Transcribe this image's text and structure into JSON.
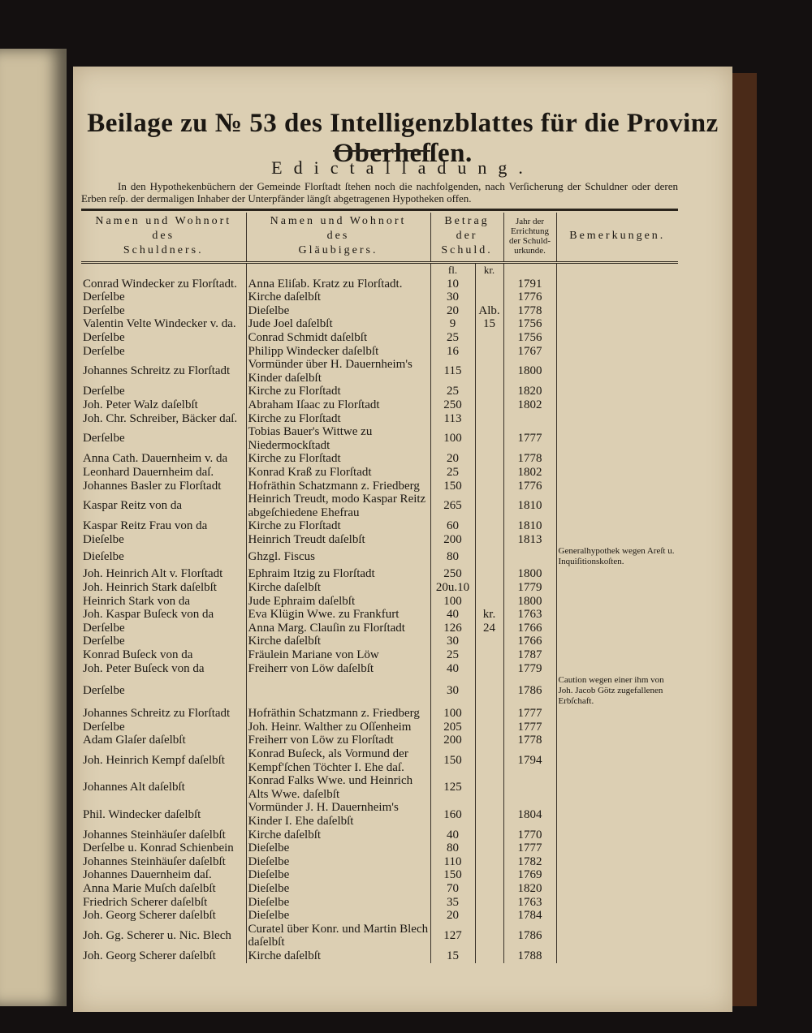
{
  "header": {
    "title": "Beilage zu № 53 des Intelligenzblattes für die Provinz Oberheſſen.",
    "subtitle": "Edictalladung.",
    "intro": "In den Hypothekenbüchern der Gemeinde Florſtadt ſtehen noch die nachfolgenden, nach Verſicherung der Schuldner oder deren Erben reſp. der dermaligen Inhaber der Unterpfänder längſt abgetragenen Hypotheken offen."
  },
  "table": {
    "columns": [
      [
        "Namen und Wohnort",
        "des",
        "Schuldners."
      ],
      [
        "Namen und Wohnort",
        "des",
        "Gläubigers."
      ],
      [
        "Betrag",
        "der",
        "Schuld."
      ],
      [
        "Jahr der",
        "Errichtung",
        "der Schuld-",
        "urkunde."
      ],
      [
        "Bemerkungen."
      ]
    ],
    "units": [
      "fl.",
      "kr."
    ],
    "rows": [
      [
        "Conrad Windecker zu Florſtadt.",
        "Anna Eliſab. Kratz zu Florſtadt.",
        "10",
        null,
        "1791",
        null
      ],
      [
        "Derſelbe",
        "Kirche daſelbſt",
        "30",
        null,
        "1776",
        null
      ],
      [
        "Derſelbe",
        "Dieſelbe",
        "20",
        "Alb.",
        "1778",
        null
      ],
      [
        "Valentin Velte Windecker v. da.",
        "Jude Joel daſelbſt",
        "9",
        "15",
        "1756",
        null
      ],
      [
        "Derſelbe",
        "Conrad Schmidt daſelbſt",
        "25",
        null,
        "1756",
        null
      ],
      [
        "Derſelbe",
        "Philipp Windecker daſelbſt",
        "16",
        null,
        "1767",
        null
      ],
      [
        "Johannes Schreitz zu Florſtadt",
        "Vormünder über H. Dauernheim's Kinder daſelbſt",
        "115",
        null,
        "1800",
        null
      ],
      [
        "Derſelbe",
        "Kirche zu Florſtadt",
        "25",
        null,
        "1820",
        null
      ],
      [
        "Joh. Peter Walz daſelbſt",
        "Abraham Iſaac zu Florſtadt",
        "250",
        null,
        "1802",
        null
      ],
      [
        "Joh. Chr. Schreiber, Bäcker daſ.",
        "Kirche zu Florſtadt",
        "113",
        null,
        null,
        null
      ],
      [
        "Derſelbe",
        "Tobias Bauer's Wittwe zu Niedermockſtadt",
        "100",
        null,
        "1777",
        null
      ],
      [
        "Anna Cath. Dauernheim v. da",
        "Kirche zu Florſtadt",
        "20",
        null,
        "1778",
        null
      ],
      [
        "Leonhard Dauernheim daſ.",
        "Konrad Kraß zu Florſtadt",
        "25",
        null,
        "1802",
        null
      ],
      [
        "Johannes Basler zu Florſtadt",
        "Hofräthin Schatzmann z. Friedberg",
        "150",
        null,
        "1776",
        null
      ],
      [
        "Kaspar Reitz von da",
        "Heinrich Treudt, modo Kaspar Reitz abgeſchiedene Ehefrau",
        "265",
        null,
        "1810",
        null
      ],
      [
        "Kaspar Reitz Frau von da",
        "Kirche zu Florſtadt",
        "60",
        null,
        "1810",
        null
      ],
      [
        "Dieſelbe",
        "Heinrich Treudt daſelbſt",
        "200",
        null,
        "1813",
        null
      ],
      [
        "Dieſelbe",
        "Ghzgl. Fiscus",
        "80",
        null,
        null,
        "Generalhypothek wegen Areſt u. Inquiſitionskoſten."
      ],
      [
        "Joh. Heinrich Alt v. Florſtadt",
        "Ephraim Itzig zu Florſtadt",
        "250",
        null,
        "1800",
        null
      ],
      [
        "Joh. Heinrich Stark daſelbſt",
        "Kirche daſelbſt",
        "20u.10",
        null,
        "1779",
        null
      ],
      [
        "Heinrich Stark von da",
        "Jude Ephraim daſelbſt",
        "100",
        null,
        "1800",
        null
      ],
      [
        "Joh. Kaspar Buſeck von da",
        "Eva Klügin Wwe. zu Frankfurt",
        "40",
        "kr.",
        "1763",
        null
      ],
      [
        "Derſelbe",
        "Anna Marg. Clauſin zu Florſtadt",
        "126",
        "24",
        "1766",
        null
      ],
      [
        "Derſelbe",
        "Kirche daſelbſt",
        "30",
        null,
        "1766",
        null
      ],
      [
        "Konrad Buſeck von da",
        "Fräulein Mariane von Löw",
        "25",
        null,
        "1787",
        null
      ],
      [
        "Joh. Peter Buſeck von da",
        "Freiherr von Löw daſelbſt",
        "40",
        null,
        "1779",
        null
      ],
      [
        "Derſelbe",
        null,
        "30",
        null,
        "1786",
        "Caution wegen einer ihm von Joh. Jacob Götz zugefallenen Erbſchaft."
      ],
      [
        "Johannes Schreitz zu Florſtadt",
        "Hofräthin Schatzmann z. Friedberg",
        "100",
        null,
        "1777",
        null
      ],
      [
        "Derſelbe",
        "Joh. Heinr. Walther zu Oſſenheim",
        "205",
        null,
        "1777",
        null
      ],
      [
        "Adam Glaſer daſelbſt",
        "Freiherr von Löw zu Florſtadt",
        "200",
        null,
        "1778",
        null
      ],
      [
        "Joh. Heinrich Kempf daſelbſt",
        "Konrad Buſeck, als Vormund der Kempf'ſchen Töchter I. Ehe daſ.",
        "150",
        null,
        "1794",
        null
      ],
      [
        "Johannes Alt daſelbſt",
        "Konrad Falks Wwe. und Heinrich Alts Wwe. daſelbſt",
        "125",
        null,
        null,
        null
      ],
      [
        "Phil. Windecker daſelbſt",
        "Vormünder J. H. Dauernheim's Kinder I. Ehe daſelbſt",
        "160",
        null,
        "1804",
        null
      ],
      [
        "Johannes Steinhäuſer daſelbſt",
        "Kirche daſelbſt",
        "40",
        null,
        "1770",
        null
      ],
      [
        "Derſelbe u. Konrad Schienbein",
        "Dieſelbe",
        "80",
        null,
        "1777",
        null
      ],
      [
        "Johannes Steinhäuſer daſelbſt",
        "Dieſelbe",
        "110",
        null,
        "1782",
        null
      ],
      [
        "Johannes Dauernheim daſ.",
        "Dieſelbe",
        "150",
        null,
        "1769",
        null
      ],
      [
        "Anna Marie Muſch daſelbſt",
        "Dieſelbe",
        "70",
        null,
        "1820",
        null
      ],
      [
        "Friedrich Scherer daſelbſt",
        "Dieſelbe",
        "35",
        null,
        "1763",
        null
      ],
      [
        "Joh. Georg Scherer daſelbſt",
        "Dieſelbe",
        "20",
        null,
        "1784",
        null
      ],
      [
        "Joh. Gg. Scherer u. Nic. Blech",
        "Curatel über Konr. und Martin Blech daſelbſt",
        "127",
        null,
        "1786",
        null
      ],
      [
        "Joh. Georg Scherer daſelbſt",
        "Kirche daſelbſt",
        "15",
        null,
        "1788",
        null
      ]
    ]
  }
}
